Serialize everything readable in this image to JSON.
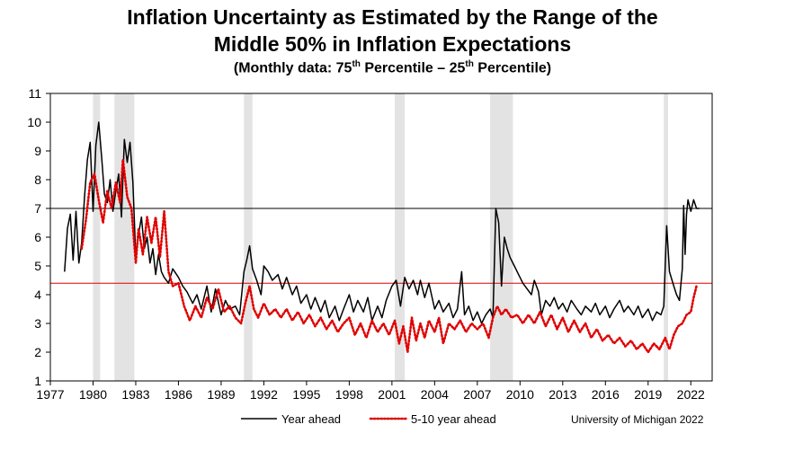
{
  "chart_data": {
    "type": "line",
    "title_line1": "Inflation Uncertainty as Estimated by the Range of the",
    "title_line2": "Middle 50% in Inflation Expectations",
    "subtitle_pre": "(Monthly data:  75",
    "subtitle_sup1": "th",
    "subtitle_mid": " Percentile – 25",
    "subtitle_sup2": "th",
    "subtitle_post": " Percentile)",
    "source": "University of Michigan 2022",
    "xlabel": "",
    "ylabel": "",
    "xlim": [
      1977,
      2023.5
    ],
    "ylim": [
      1,
      11
    ],
    "x_ticks": [
      1977,
      1980,
      1983,
      1986,
      1989,
      1992,
      1995,
      1998,
      2001,
      2004,
      2007,
      2010,
      2013,
      2016,
      2019,
      2022
    ],
    "x_tick_labels": [
      "1977",
      "1980",
      "1983",
      "1986",
      "1989",
      "1992",
      "1995",
      "1998",
      "2001",
      "2004",
      "2007",
      "2010",
      "2013",
      "2016",
      "2019",
      "2022"
    ],
    "y_ticks": [
      1,
      2,
      3,
      4,
      5,
      6,
      7,
      8,
      9,
      10,
      11
    ],
    "y_tick_labels": [
      "1",
      "2",
      "3",
      "4",
      "5",
      "6",
      "7",
      "8",
      "9",
      "10",
      "11"
    ],
    "grid": false,
    "legend_position": "bottom",
    "recessions": [
      [
        1980.0,
        1980.5
      ],
      [
        1981.5,
        1982.9
      ],
      [
        1990.6,
        1991.2
      ],
      [
        2001.2,
        2001.9
      ],
      [
        2007.9,
        2009.5
      ],
      [
        2020.1,
        2020.4
      ]
    ],
    "reference_lines": [
      {
        "y": 7.0,
        "color": "#000000"
      },
      {
        "y": 4.4,
        "color": "#e00000"
      }
    ],
    "series": [
      {
        "name": "Year ahead",
        "color": "#000000",
        "style": "solid",
        "points": [
          [
            1978.0,
            4.8
          ],
          [
            1978.2,
            6.3
          ],
          [
            1978.4,
            6.8
          ],
          [
            1978.6,
            5.2
          ],
          [
            1978.8,
            6.9
          ],
          [
            1979.0,
            5.1
          ],
          [
            1979.2,
            5.8
          ],
          [
            1979.4,
            7.4
          ],
          [
            1979.6,
            8.7
          ],
          [
            1979.8,
            9.3
          ],
          [
            1980.0,
            6.9
          ],
          [
            1980.2,
            9.2
          ],
          [
            1980.4,
            10.0
          ],
          [
            1980.6,
            8.8
          ],
          [
            1980.8,
            7.5
          ],
          [
            1981.0,
            7.2
          ],
          [
            1981.2,
            8.0
          ],
          [
            1981.4,
            6.9
          ],
          [
            1981.6,
            7.6
          ],
          [
            1981.8,
            8.2
          ],
          [
            1982.0,
            6.7
          ],
          [
            1982.2,
            9.4
          ],
          [
            1982.4,
            8.6
          ],
          [
            1982.6,
            9.3
          ],
          [
            1982.8,
            7.9
          ],
          [
            1983.0,
            5.3
          ],
          [
            1983.2,
            6.1
          ],
          [
            1983.4,
            6.7
          ],
          [
            1983.6,
            5.6
          ],
          [
            1983.8,
            6.0
          ],
          [
            1984.0,
            5.1
          ],
          [
            1984.2,
            5.6
          ],
          [
            1984.4,
            4.7
          ],
          [
            1984.6,
            5.4
          ],
          [
            1984.8,
            4.8
          ],
          [
            1985.0,
            4.6
          ],
          [
            1985.3,
            4.4
          ],
          [
            1985.6,
            4.9
          ],
          [
            1986.0,
            4.6
          ],
          [
            1986.3,
            4.3
          ],
          [
            1986.6,
            4.1
          ],
          [
            1987.0,
            3.7
          ],
          [
            1987.3,
            4.0
          ],
          [
            1987.6,
            3.5
          ],
          [
            1988.0,
            4.3
          ],
          [
            1988.3,
            3.4
          ],
          [
            1988.6,
            4.2
          ],
          [
            1989.0,
            3.3
          ],
          [
            1989.3,
            3.8
          ],
          [
            1989.6,
            3.5
          ],
          [
            1990.0,
            3.6
          ],
          [
            1990.3,
            3.3
          ],
          [
            1990.6,
            4.8
          ],
          [
            1990.8,
            5.2
          ],
          [
            1991.0,
            5.7
          ],
          [
            1991.2,
            4.9
          ],
          [
            1991.5,
            4.5
          ],
          [
            1991.8,
            4.0
          ],
          [
            1992.0,
            5.0
          ],
          [
            1992.3,
            4.8
          ],
          [
            1992.6,
            4.5
          ],
          [
            1993.0,
            4.7
          ],
          [
            1993.3,
            4.2
          ],
          [
            1993.6,
            4.6
          ],
          [
            1994.0,
            4.0
          ],
          [
            1994.3,
            4.3
          ],
          [
            1994.6,
            3.7
          ],
          [
            1995.0,
            4.0
          ],
          [
            1995.3,
            3.5
          ],
          [
            1995.6,
            3.9
          ],
          [
            1996.0,
            3.4
          ],
          [
            1996.3,
            3.8
          ],
          [
            1996.6,
            3.2
          ],
          [
            1997.0,
            3.6
          ],
          [
            1997.3,
            3.1
          ],
          [
            1997.6,
            3.5
          ],
          [
            1998.0,
            4.0
          ],
          [
            1998.3,
            3.4
          ],
          [
            1998.6,
            3.8
          ],
          [
            1999.0,
            3.4
          ],
          [
            1999.3,
            3.9
          ],
          [
            1999.6,
            3.1
          ],
          [
            2000.0,
            3.6
          ],
          [
            2000.3,
            3.2
          ],
          [
            2000.6,
            3.8
          ],
          [
            2001.0,
            4.3
          ],
          [
            2001.3,
            4.5
          ],
          [
            2001.6,
            3.6
          ],
          [
            2001.9,
            4.6
          ],
          [
            2002.2,
            4.2
          ],
          [
            2002.5,
            4.5
          ],
          [
            2002.8,
            4.0
          ],
          [
            2003.0,
            4.5
          ],
          [
            2003.3,
            3.9
          ],
          [
            2003.6,
            4.4
          ],
          [
            2004.0,
            3.5
          ],
          [
            2004.3,
            3.8
          ],
          [
            2004.6,
            3.4
          ],
          [
            2005.0,
            3.7
          ],
          [
            2005.3,
            3.2
          ],
          [
            2005.6,
            3.5
          ],
          [
            2005.9,
            4.8
          ],
          [
            2006.1,
            3.3
          ],
          [
            2006.4,
            3.6
          ],
          [
            2006.7,
            3.1
          ],
          [
            2007.0,
            3.4
          ],
          [
            2007.3,
            3.0
          ],
          [
            2007.6,
            3.3
          ],
          [
            2007.9,
            3.5
          ],
          [
            2008.1,
            3.2
          ],
          [
            2008.3,
            7.0
          ],
          [
            2008.5,
            6.5
          ],
          [
            2008.7,
            4.3
          ],
          [
            2008.9,
            6.0
          ],
          [
            2009.1,
            5.6
          ],
          [
            2009.3,
            5.3
          ],
          [
            2009.6,
            5.0
          ],
          [
            2009.9,
            4.7
          ],
          [
            2010.2,
            4.4
          ],
          [
            2010.5,
            4.2
          ],
          [
            2010.8,
            4.0
          ],
          [
            2011.0,
            4.5
          ],
          [
            2011.3,
            4.1
          ],
          [
            2011.5,
            3.3
          ],
          [
            2011.8,
            3.8
          ],
          [
            2012.1,
            3.6
          ],
          [
            2012.4,
            3.9
          ],
          [
            2012.7,
            3.5
          ],
          [
            2013.0,
            3.7
          ],
          [
            2013.3,
            3.4
          ],
          [
            2013.6,
            3.8
          ],
          [
            2014.0,
            3.5
          ],
          [
            2014.3,
            3.3
          ],
          [
            2014.6,
            3.6
          ],
          [
            2015.0,
            3.4
          ],
          [
            2015.3,
            3.7
          ],
          [
            2015.6,
            3.3
          ],
          [
            2016.0,
            3.6
          ],
          [
            2016.3,
            3.2
          ],
          [
            2016.6,
            3.5
          ],
          [
            2017.0,
            3.8
          ],
          [
            2017.3,
            3.4
          ],
          [
            2017.6,
            3.6
          ],
          [
            2018.0,
            3.3
          ],
          [
            2018.3,
            3.6
          ],
          [
            2018.6,
            3.2
          ],
          [
            2019.0,
            3.5
          ],
          [
            2019.3,
            3.1
          ],
          [
            2019.6,
            3.4
          ],
          [
            2019.9,
            3.3
          ],
          [
            2020.1,
            3.6
          ],
          [
            2020.3,
            6.4
          ],
          [
            2020.5,
            4.8
          ],
          [
            2020.8,
            4.3
          ],
          [
            2021.0,
            4.0
          ],
          [
            2021.2,
            3.8
          ],
          [
            2021.4,
            4.9
          ],
          [
            2021.5,
            7.1
          ],
          [
            2021.6,
            5.4
          ],
          [
            2021.7,
            6.8
          ],
          [
            2021.8,
            7.3
          ],
          [
            2022.0,
            6.9
          ],
          [
            2022.2,
            7.3
          ],
          [
            2022.4,
            7.0
          ],
          [
            2022.6,
            7.0
          ]
        ]
      },
      {
        "name": "5-10 year ahead",
        "color": "#e00000",
        "style": "dotted",
        "points": [
          [
            1979.2,
            5.6
          ],
          [
            1979.5,
            6.6
          ],
          [
            1979.8,
            7.9
          ],
          [
            1980.1,
            8.2
          ],
          [
            1980.4,
            7.3
          ],
          [
            1980.7,
            6.5
          ],
          [
            1981.0,
            7.6
          ],
          [
            1981.3,
            7.0
          ],
          [
            1981.6,
            7.9
          ],
          [
            1981.9,
            7.2
          ],
          [
            1982.1,
            8.7
          ],
          [
            1982.4,
            7.4
          ],
          [
            1982.7,
            7.0
          ],
          [
            1983.0,
            5.1
          ],
          [
            1983.2,
            6.3
          ],
          [
            1983.5,
            5.4
          ],
          [
            1983.8,
            6.7
          ],
          [
            1984.1,
            5.8
          ],
          [
            1984.4,
            6.7
          ],
          [
            1984.7,
            5.3
          ],
          [
            1985.0,
            6.9
          ],
          [
            1985.3,
            4.8
          ],
          [
            1985.6,
            4.3
          ],
          [
            1986.0,
            4.4
          ],
          [
            1986.4,
            3.6
          ],
          [
            1986.8,
            3.1
          ],
          [
            1987.2,
            3.6
          ],
          [
            1987.6,
            3.2
          ],
          [
            1988.0,
            3.9
          ],
          [
            1988.4,
            3.5
          ],
          [
            1988.8,
            4.2
          ],
          [
            1989.2,
            3.4
          ],
          [
            1989.6,
            3.6
          ],
          [
            1990.0,
            3.2
          ],
          [
            1990.4,
            3.0
          ],
          [
            1990.7,
            3.7
          ],
          [
            1991.0,
            4.3
          ],
          [
            1991.3,
            3.5
          ],
          [
            1991.6,
            3.2
          ],
          [
            1992.0,
            3.7
          ],
          [
            1992.4,
            3.3
          ],
          [
            1992.8,
            3.5
          ],
          [
            1993.2,
            3.2
          ],
          [
            1993.6,
            3.5
          ],
          [
            1994.0,
            3.1
          ],
          [
            1994.4,
            3.4
          ],
          [
            1994.8,
            3.0
          ],
          [
            1995.2,
            3.3
          ],
          [
            1995.6,
            2.9
          ],
          [
            1996.0,
            3.2
          ],
          [
            1996.4,
            2.8
          ],
          [
            1996.8,
            3.1
          ],
          [
            1997.2,
            2.7
          ],
          [
            1997.6,
            3.0
          ],
          [
            1998.0,
            3.2
          ],
          [
            1998.4,
            2.6
          ],
          [
            1998.8,
            3.0
          ],
          [
            1999.2,
            2.5
          ],
          [
            1999.6,
            3.1
          ],
          [
            2000.0,
            2.7
          ],
          [
            2000.4,
            3.0
          ],
          [
            2000.8,
            2.6
          ],
          [
            2001.2,
            3.1
          ],
          [
            2001.5,
            2.3
          ],
          [
            2001.8,
            2.9
          ],
          [
            2002.1,
            2.0
          ],
          [
            2002.4,
            3.2
          ],
          [
            2002.7,
            2.4
          ],
          [
            2003.0,
            3.0
          ],
          [
            2003.3,
            2.5
          ],
          [
            2003.6,
            3.1
          ],
          [
            2004.0,
            2.7
          ],
          [
            2004.3,
            3.2
          ],
          [
            2004.6,
            2.3
          ],
          [
            2005.0,
            3.0
          ],
          [
            2005.4,
            2.8
          ],
          [
            2005.8,
            3.1
          ],
          [
            2006.2,
            2.7
          ],
          [
            2006.6,
            3.0
          ],
          [
            2007.0,
            2.8
          ],
          [
            2007.4,
            3.0
          ],
          [
            2007.8,
            2.5
          ],
          [
            2008.1,
            3.2
          ],
          [
            2008.4,
            3.6
          ],
          [
            2008.7,
            3.3
          ],
          [
            2009.0,
            3.5
          ],
          [
            2009.4,
            3.2
          ],
          [
            2009.8,
            3.3
          ],
          [
            2010.2,
            3.0
          ],
          [
            2010.6,
            3.3
          ],
          [
            2011.0,
            3.0
          ],
          [
            2011.4,
            3.4
          ],
          [
            2011.8,
            2.9
          ],
          [
            2012.2,
            3.3
          ],
          [
            2012.6,
            2.8
          ],
          [
            2013.0,
            3.2
          ],
          [
            2013.4,
            2.7
          ],
          [
            2013.8,
            3.1
          ],
          [
            2014.2,
            2.7
          ],
          [
            2014.6,
            3.0
          ],
          [
            2015.0,
            2.5
          ],
          [
            2015.4,
            2.8
          ],
          [
            2015.8,
            2.4
          ],
          [
            2016.2,
            2.6
          ],
          [
            2016.6,
            2.3
          ],
          [
            2017.0,
            2.5
          ],
          [
            2017.4,
            2.2
          ],
          [
            2017.8,
            2.4
          ],
          [
            2018.2,
            2.1
          ],
          [
            2018.6,
            2.3
          ],
          [
            2019.0,
            2.0
          ],
          [
            2019.4,
            2.3
          ],
          [
            2019.8,
            2.1
          ],
          [
            2020.2,
            2.5
          ],
          [
            2020.5,
            2.1
          ],
          [
            2020.8,
            2.6
          ],
          [
            2021.1,
            2.9
          ],
          [
            2021.4,
            3.0
          ],
          [
            2021.7,
            3.3
          ],
          [
            2022.0,
            3.4
          ],
          [
            2022.2,
            3.9
          ],
          [
            2022.4,
            4.3
          ]
        ]
      }
    ]
  }
}
